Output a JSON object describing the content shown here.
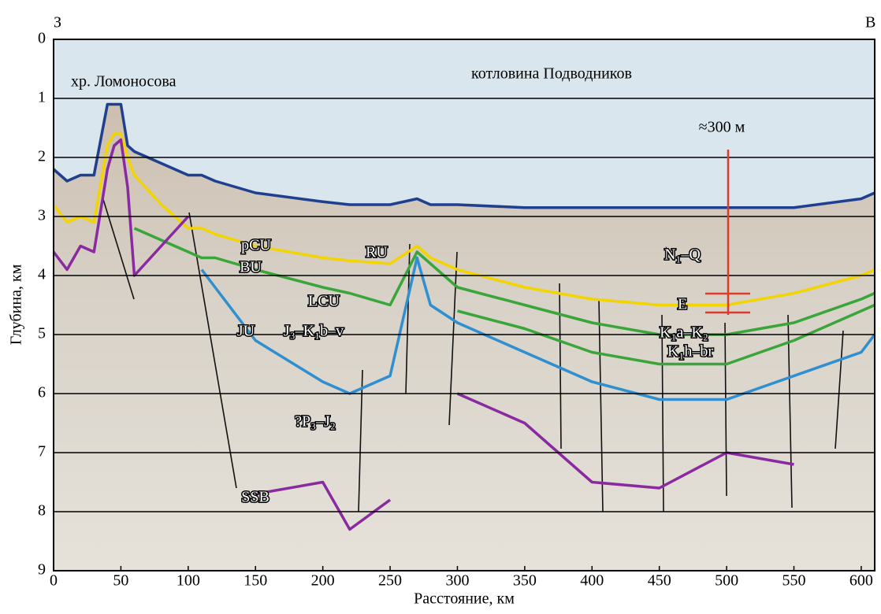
{
  "chart_data": {
    "type": "line",
    "x_label": "Расстояние, км",
    "y_label": "Глубина, км",
    "corner_left": "З",
    "corner_right": "В",
    "x": [
      0,
      10,
      20,
      30,
      40,
      45,
      50,
      55,
      60,
      80,
      100,
      110,
      120,
      150,
      200,
      220,
      250,
      270,
      280,
      300,
      350,
      400,
      450,
      500,
      550,
      600,
      610
    ],
    "series": [
      {
        "color": "#1f3f8f",
        "values": [
          2.2,
          2.4,
          2.3,
          2.3,
          1.1,
          1.1,
          1.1,
          1.8,
          1.9,
          2.1,
          2.3,
          2.3,
          2.4,
          2.6,
          2.75,
          2.8,
          2.8,
          2.7,
          2.8,
          2.8,
          2.85,
          2.85,
          2.85,
          2.85,
          2.85,
          2.7,
          2.6
        ]
      },
      {
        "color": "#f2d400",
        "values": [
          2.8,
          3.1,
          3.0,
          3.1,
          1.8,
          1.6,
          1.6,
          2.0,
          2.3,
          2.8,
          3.2,
          3.2,
          3.3,
          3.5,
          3.7,
          3.75,
          3.8,
          3.5,
          3.7,
          3.9,
          4.2,
          4.4,
          4.5,
          4.5,
          4.3,
          4.0,
          3.9
        ]
      },
      {
        "color": "#3aa63a",
        "values": [
          null,
          null,
          null,
          null,
          null,
          null,
          null,
          null,
          3.2,
          3.4,
          3.6,
          3.7,
          3.7,
          3.9,
          4.2,
          4.3,
          4.5,
          3.6,
          3.8,
          4.2,
          4.5,
          4.8,
          5.0,
          5.0,
          4.8,
          4.4,
          4.3
        ]
      },
      {
        "color": "#3aa63a",
        "values": [
          null,
          null,
          null,
          null,
          null,
          null,
          null,
          null,
          null,
          null,
          null,
          null,
          null,
          null,
          null,
          null,
          null,
          null,
          null,
          4.6,
          4.9,
          5.3,
          5.5,
          5.5,
          5.1,
          4.6,
          4.5
        ]
      },
      {
        "color": "#2f8fd0",
        "values": [
          null,
          null,
          null,
          null,
          null,
          null,
          null,
          null,
          null,
          null,
          null,
          3.9,
          4.2,
          5.1,
          5.8,
          6.0,
          5.7,
          3.7,
          4.5,
          4.8,
          5.3,
          5.8,
          6.1,
          6.1,
          5.7,
          5.3,
          5.0
        ]
      },
      {
        "color": "#8a2aa0",
        "values": [
          3.6,
          3.9,
          3.5,
          3.6,
          2.2,
          1.8,
          1.7,
          2.5,
          4.0,
          3.5,
          3.0,
          null,
          null,
          7.7,
          7.5,
          8.3,
          7.8,
          null,
          null,
          6.0,
          6.5,
          7.5,
          7.6,
          7.0,
          7.2,
          null,
          null
        ]
      }
    ],
    "annotations": [
      "хр. Ломоносова",
      "котловина Подводников",
      "≈300 м",
      "pCU",
      "BU",
      "RU",
      "LCU",
      "JU",
      "J₃–K₁b–v",
      "N₁–Q",
      "E",
      "K₁a–K₂",
      "K₁h–br",
      "?P₃–J₂",
      "SSB"
    ],
    "xlim": [
      0,
      610
    ],
    "ylim": [
      9,
      0
    ],
    "xticks": [
      0,
      50,
      100,
      150,
      200,
      250,
      300,
      350,
      400,
      450,
      500,
      550,
      600
    ],
    "yticks": [
      0,
      1,
      2,
      3,
      4,
      5,
      6,
      7,
      8,
      9
    ],
    "grid": true
  }
}
